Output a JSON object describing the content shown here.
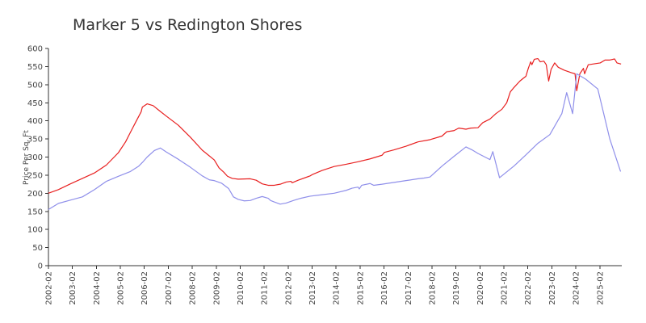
{
  "chart_data": {
    "type": "line",
    "title": "Marker 5 vs Redington Shores",
    "xlabel": "",
    "ylabel": "Price Per Sq. Ft",
    "ylim": [
      0,
      600
    ],
    "yticks": [
      0,
      50,
      100,
      150,
      200,
      250,
      300,
      350,
      400,
      450,
      500,
      550,
      600
    ],
    "xlim": [
      2002.083,
      2026.0
    ],
    "xtick_labels": [
      "2002-02",
      "2003-02",
      "2004-02",
      "2005-02",
      "2006-02",
      "2007-02",
      "2008-02",
      "2009-02",
      "2010-02",
      "2011-02",
      "2012-02",
      "2013-02",
      "2014-02",
      "2015-02",
      "2016-02",
      "2017-02",
      "2018-02",
      "2019-02",
      "2020-02",
      "2021-02",
      "2022-02",
      "2023-02",
      "2024-02",
      "2025-02"
    ],
    "xtick_values": [
      2002.083,
      2003.083,
      2004.083,
      2005.083,
      2006.083,
      2007.083,
      2008.083,
      2009.083,
      2010.083,
      2011.083,
      2012.083,
      2013.083,
      2014.083,
      2015.083,
      2016.083,
      2017.083,
      2018.083,
      2019.083,
      2020.083,
      2021.083,
      2022.083,
      2023.083,
      2024.083,
      2025.083
    ],
    "grid": false,
    "legend": "none",
    "series": [
      {
        "color": "#e82020",
        "points": [
          [
            2002.08,
            200
          ],
          [
            2002.5,
            210
          ],
          [
            2003.0,
            226
          ],
          [
            2003.5,
            241
          ],
          [
            2004.0,
            256
          ],
          [
            2004.5,
            278
          ],
          [
            2005.0,
            312
          ],
          [
            2005.3,
            342
          ],
          [
            2005.5,
            368
          ],
          [
            2005.75,
            400
          ],
          [
            2005.95,
            425
          ],
          [
            2006.0,
            438
          ],
          [
            2006.2,
            447
          ],
          [
            2006.45,
            442
          ],
          [
            2006.75,
            426
          ],
          [
            2007.0,
            413
          ],
          [
            2007.5,
            388
          ],
          [
            2008.0,
            355
          ],
          [
            2008.5,
            319
          ],
          [
            2009.0,
            292
          ],
          [
            2009.2,
            270
          ],
          [
            2009.4,
            258
          ],
          [
            2009.55,
            247
          ],
          [
            2009.75,
            241
          ],
          [
            2010.0,
            239
          ],
          [
            2010.5,
            240
          ],
          [
            2010.75,
            236
          ],
          [
            2011.0,
            226
          ],
          [
            2011.25,
            222
          ],
          [
            2011.5,
            222
          ],
          [
            2011.75,
            225
          ],
          [
            2012.0,
            231
          ],
          [
            2012.2,
            233
          ],
          [
            2012.25,
            229
          ],
          [
            2012.5,
            236
          ],
          [
            2013.0,
            248
          ],
          [
            2013.1,
            252
          ],
          [
            2013.5,
            263
          ],
          [
            2014.0,
            274
          ],
          [
            2014.5,
            280
          ],
          [
            2015.0,
            287
          ],
          [
            2015.5,
            295
          ],
          [
            2016.0,
            305
          ],
          [
            2016.1,
            313
          ],
          [
            2016.5,
            320
          ],
          [
            2017.0,
            330
          ],
          [
            2017.5,
            342
          ],
          [
            2018.0,
            348
          ],
          [
            2018.5,
            358
          ],
          [
            2018.7,
            370
          ],
          [
            2019.0,
            373
          ],
          [
            2019.2,
            380
          ],
          [
            2019.5,
            377
          ],
          [
            2019.7,
            380
          ],
          [
            2020.0,
            381
          ],
          [
            2020.2,
            395
          ],
          [
            2020.5,
            405
          ],
          [
            2020.75,
            420
          ],
          [
            2021.0,
            432
          ],
          [
            2021.2,
            450
          ],
          [
            2021.35,
            480
          ],
          [
            2021.5,
            492
          ],
          [
            2021.75,
            510
          ],
          [
            2021.9,
            518
          ],
          [
            2022.0,
            523
          ],
          [
            2022.1,
            545
          ],
          [
            2022.2,
            563
          ],
          [
            2022.25,
            555
          ],
          [
            2022.35,
            570
          ],
          [
            2022.5,
            572
          ],
          [
            2022.6,
            563
          ],
          [
            2022.75,
            565
          ],
          [
            2022.85,
            555
          ],
          [
            2022.95,
            510
          ],
          [
            2023.05,
            542
          ],
          [
            2023.2,
            560
          ],
          [
            2023.35,
            548
          ],
          [
            2023.6,
            540
          ],
          [
            2023.9,
            533
          ],
          [
            2024.05,
            530
          ],
          [
            2024.12,
            483
          ],
          [
            2024.25,
            530
          ],
          [
            2024.4,
            545
          ],
          [
            2024.45,
            530
          ],
          [
            2024.6,
            555
          ],
          [
            2024.9,
            558
          ],
          [
            2025.1,
            560
          ],
          [
            2025.3,
            568
          ],
          [
            2025.5,
            568
          ],
          [
            2025.7,
            571
          ],
          [
            2025.8,
            560
          ],
          [
            2025.97,
            557
          ]
        ]
      },
      {
        "color": "#8f8fea",
        "points": [
          [
            2002.08,
            155
          ],
          [
            2002.5,
            172
          ],
          [
            2003.0,
            181
          ],
          [
            2003.5,
            190
          ],
          [
            2004.0,
            210
          ],
          [
            2004.5,
            233
          ],
          [
            2005.0,
            247
          ],
          [
            2005.5,
            260
          ],
          [
            2005.85,
            275
          ],
          [
            2006.0,
            285
          ],
          [
            2006.2,
            300
          ],
          [
            2006.5,
            318
          ],
          [
            2006.75,
            325
          ],
          [
            2007.0,
            314
          ],
          [
            2007.5,
            294
          ],
          [
            2008.0,
            272
          ],
          [
            2008.5,
            248
          ],
          [
            2008.8,
            237
          ],
          [
            2009.0,
            235
          ],
          [
            2009.3,
            228
          ],
          [
            2009.6,
            213
          ],
          [
            2009.8,
            190
          ],
          [
            2010.0,
            183
          ],
          [
            2010.25,
            179
          ],
          [
            2010.5,
            180
          ],
          [
            2010.75,
            186
          ],
          [
            2011.0,
            191
          ],
          [
            2011.25,
            186
          ],
          [
            2011.35,
            180
          ],
          [
            2011.5,
            176
          ],
          [
            2011.75,
            170
          ],
          [
            2012.0,
            173
          ],
          [
            2012.3,
            180
          ],
          [
            2012.6,
            186
          ],
          [
            2013.0,
            192
          ],
          [
            2013.5,
            196
          ],
          [
            2014.0,
            200
          ],
          [
            2014.5,
            208
          ],
          [
            2014.75,
            214
          ],
          [
            2015.0,
            217
          ],
          [
            2015.05,
            212
          ],
          [
            2015.15,
            222
          ],
          [
            2015.5,
            227
          ],
          [
            2015.65,
            222
          ],
          [
            2016.0,
            225
          ],
          [
            2016.5,
            230
          ],
          [
            2017.0,
            235
          ],
          [
            2017.5,
            240
          ],
          [
            2017.75,
            242
          ],
          [
            2018.0,
            245
          ],
          [
            2018.5,
            275
          ],
          [
            2019.0,
            302
          ],
          [
            2019.5,
            328
          ],
          [
            2019.75,
            320
          ],
          [
            2020.0,
            310
          ],
          [
            2020.5,
            293
          ],
          [
            2020.62,
            315
          ],
          [
            2020.9,
            243
          ],
          [
            2021.5,
            275
          ],
          [
            2022.0,
            306
          ],
          [
            2022.5,
            338
          ],
          [
            2023.0,
            362
          ],
          [
            2023.5,
            420
          ],
          [
            2023.7,
            478
          ],
          [
            2023.95,
            420
          ],
          [
            2024.12,
            530
          ],
          [
            2024.5,
            515
          ],
          [
            2025.0,
            488
          ],
          [
            2025.5,
            350
          ],
          [
            2025.95,
            260
          ]
        ]
      }
    ]
  }
}
